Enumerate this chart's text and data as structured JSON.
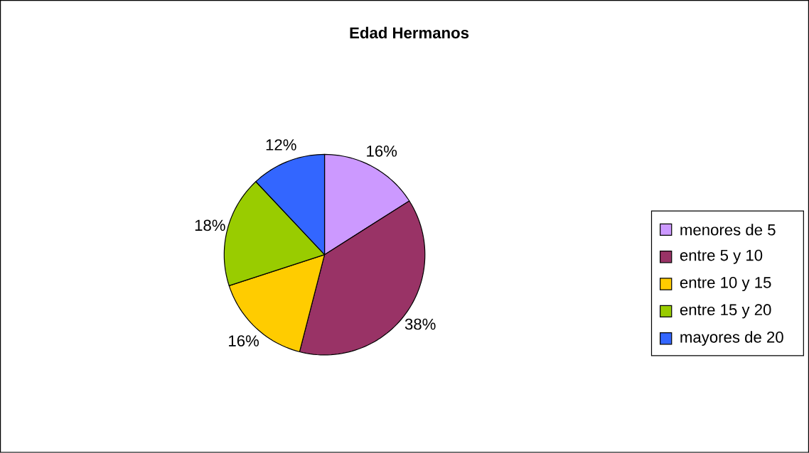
{
  "chart_data": {
    "type": "pie",
    "title": "Edad Hermanos",
    "categories": [
      "menores de 5",
      "entre 5 y 10",
      "entre 10 y 15",
      "entre 15 y 20",
      "mayores de 20"
    ],
    "values": [
      16,
      38,
      16,
      18,
      12
    ],
    "colors": [
      "#cc99ff",
      "#993366",
      "#ffcc00",
      "#99cc00",
      "#3366ff"
    ],
    "value_labels": [
      "16%",
      "38%",
      "16%",
      "18%",
      "12%"
    ],
    "legend": "right"
  }
}
